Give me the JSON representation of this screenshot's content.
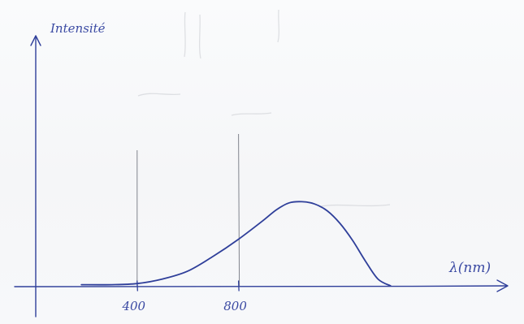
{
  "chart_data": {
    "type": "line",
    "title": "",
    "xlabel": "λ(nm)",
    "ylabel": "Intensité",
    "x_ticks": [
      400,
      800
    ],
    "xlim": [
      0,
      1450
    ],
    "ylim": [
      0,
      1.0
    ],
    "grid": false,
    "legend": "none",
    "series": [
      {
        "x": [
          180,
          300,
          400,
          500,
          600,
          700,
          800,
          900,
          950,
          1000,
          1050,
          1100,
          1150,
          1200,
          1250,
          1300,
          1350,
          1400
        ],
        "y": [
          0.01,
          0.01,
          0.02,
          0.06,
          0.13,
          0.26,
          0.41,
          0.58,
          0.67,
          0.73,
          0.74,
          0.72,
          0.66,
          0.55,
          0.4,
          0.22,
          0.06,
          0.0
        ]
      }
    ],
    "vertical_guides": [
      400,
      800
    ],
    "colors": {
      "ink": "#2f3f9a",
      "guide": "#5a5e6a",
      "paper": "#f8f9fb"
    }
  }
}
